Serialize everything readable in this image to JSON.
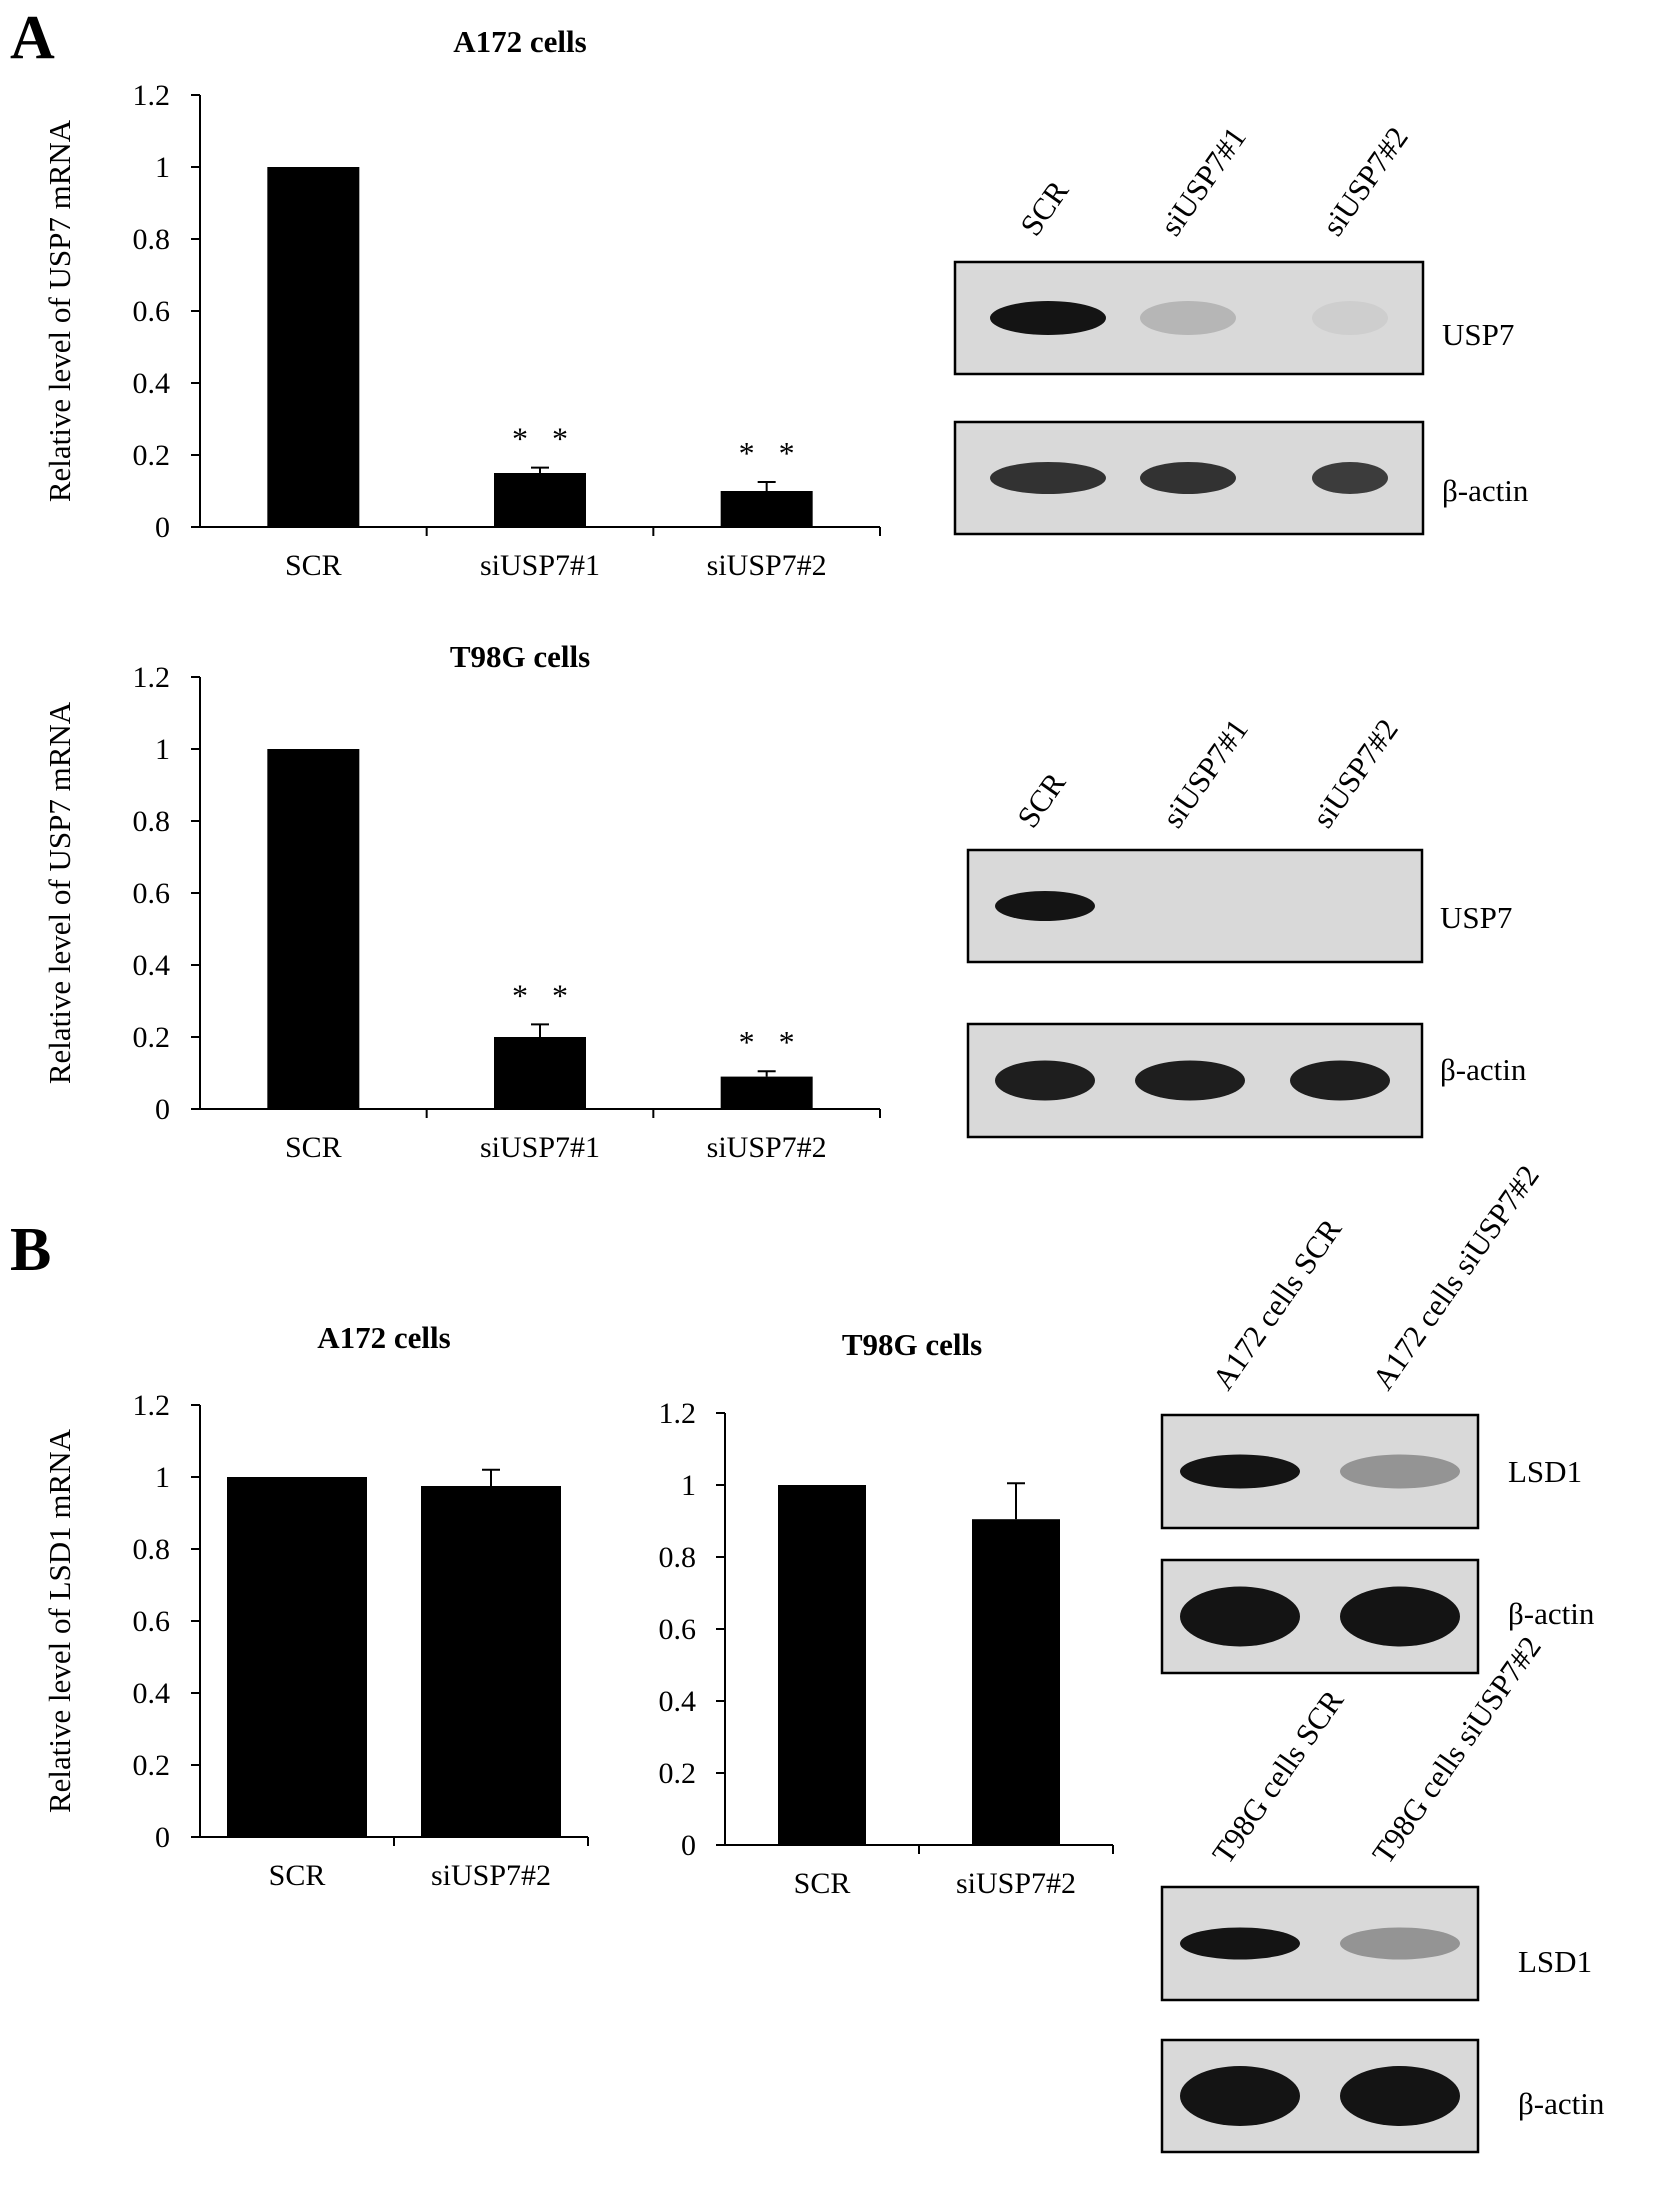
{
  "figure": {
    "panel_a_letter": "A",
    "panel_b_letter": "B"
  },
  "colors": {
    "bar": "#000000",
    "axis": "#000000",
    "blot_bg": "#d9d9d9",
    "band": "#141414"
  },
  "chart_data": [
    {
      "type": "bar",
      "title": "A172 cells",
      "ylabel": "Relative level of USP7 mRNA",
      "categories": [
        "SCR",
        "siUSP7#1",
        "siUSP7#2"
      ],
      "values": [
        1.0,
        0.15,
        0.1
      ],
      "errors": [
        0.0,
        0.015,
        0.025
      ],
      "annotations": [
        "",
        "* *",
        "* *"
      ],
      "ylim": [
        0,
        1.2
      ],
      "yticks": [
        "0",
        "0.2",
        "0.4",
        "0.6",
        "0.8",
        "1",
        "1.2"
      ],
      "grid": false
    },
    {
      "type": "bar",
      "title": "T98G cells",
      "ylabel": "Relative level of USP7 mRNA",
      "categories": [
        "SCR",
        "siUSP7#1",
        "siUSP7#2"
      ],
      "values": [
        1.0,
        0.2,
        0.09
      ],
      "errors": [
        0.0,
        0.035,
        0.015
      ],
      "annotations": [
        "",
        "* *",
        "* *"
      ],
      "ylim": [
        0,
        1.2
      ],
      "yticks": [
        "0",
        "0.2",
        "0.4",
        "0.6",
        "0.8",
        "1",
        "1.2"
      ],
      "grid": false
    },
    {
      "type": "bar",
      "title": "A172 cells",
      "ylabel": "Relative level of  LSD1 mRNA",
      "categories": [
        "SCR",
        "siUSP7#2"
      ],
      "values": [
        1.0,
        0.975
      ],
      "errors": [
        0.0,
        0.045
      ],
      "annotations": [
        "",
        ""
      ],
      "ylim": [
        0,
        1.2
      ],
      "yticks": [
        "0",
        "0.2",
        "0.4",
        "0.6",
        "0.8",
        "1",
        "1.2"
      ],
      "grid": false
    },
    {
      "type": "bar",
      "title": "T98G cells",
      "ylabel": "",
      "categories": [
        "SCR",
        "siUSP7#2"
      ],
      "values": [
        1.0,
        0.905
      ],
      "errors": [
        0.0,
        0.1
      ],
      "annotations": [
        "",
        ""
      ],
      "ylim": [
        0,
        1.2
      ],
      "yticks": [
        "0",
        "0.2",
        "0.4",
        "0.6",
        "0.8",
        "1",
        "1.2"
      ],
      "grid": false
    }
  ],
  "blots": [
    {
      "lanes": [
        "SCR",
        "siUSP7#1",
        "siUSP7#2"
      ],
      "rows": [
        {
          "label": "USP7",
          "intensities": [
            1.0,
            0.18,
            0.05
          ]
        },
        {
          "label": "β-actin",
          "intensities": [
            0.85,
            0.85,
            0.8
          ]
        }
      ]
    },
    {
      "lanes": [
        "SCR",
        "siUSP7#1",
        "siUSP7#2"
      ],
      "rows": [
        {
          "label": "USP7",
          "intensities": [
            1.0,
            0.0,
            0.0
          ]
        },
        {
          "label": "β-actin",
          "intensities": [
            0.95,
            0.95,
            0.95
          ]
        }
      ]
    },
    {
      "lanes": [
        "A172 cells SCR",
        "A172 cells siUSP7#2"
      ],
      "rows": [
        {
          "label": "LSD1",
          "intensities": [
            1.0,
            0.35
          ]
        },
        {
          "label": "β-actin",
          "intensities": [
            1.0,
            1.0
          ]
        }
      ]
    },
    {
      "lanes": [
        "T98G cells SCR",
        "T98G cells siUSP7#2"
      ],
      "rows": [
        {
          "label": "LSD1",
          "intensities": [
            1.0,
            0.35
          ]
        },
        {
          "label": "β-actin",
          "intensities": [
            1.0,
            1.0
          ]
        }
      ]
    }
  ]
}
